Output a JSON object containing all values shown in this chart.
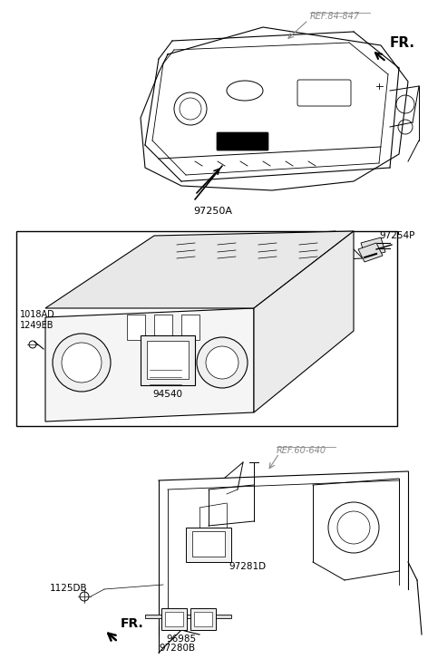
{
  "bg_color": "#ffffff",
  "line_color": "#000000",
  "gray_color": "#888888",
  "label_color": "#555555",
  "fig_width": 4.72,
  "fig_height": 7.27,
  "labels": {
    "ref_84_847": "REF.84-847",
    "fr_top": "FR.",
    "part_97250A": "97250A",
    "part_1018AD": "1018AD",
    "part_1249EB": "1249EB",
    "part_94540": "94540",
    "part_97254P": "97254P",
    "ref_60_640": "REF.60-640",
    "part_97281D": "97281D",
    "part_1125DB": "1125DB",
    "fr_bot": "FR.",
    "part_96985": "96985",
    "part_97280B": "97280B"
  }
}
